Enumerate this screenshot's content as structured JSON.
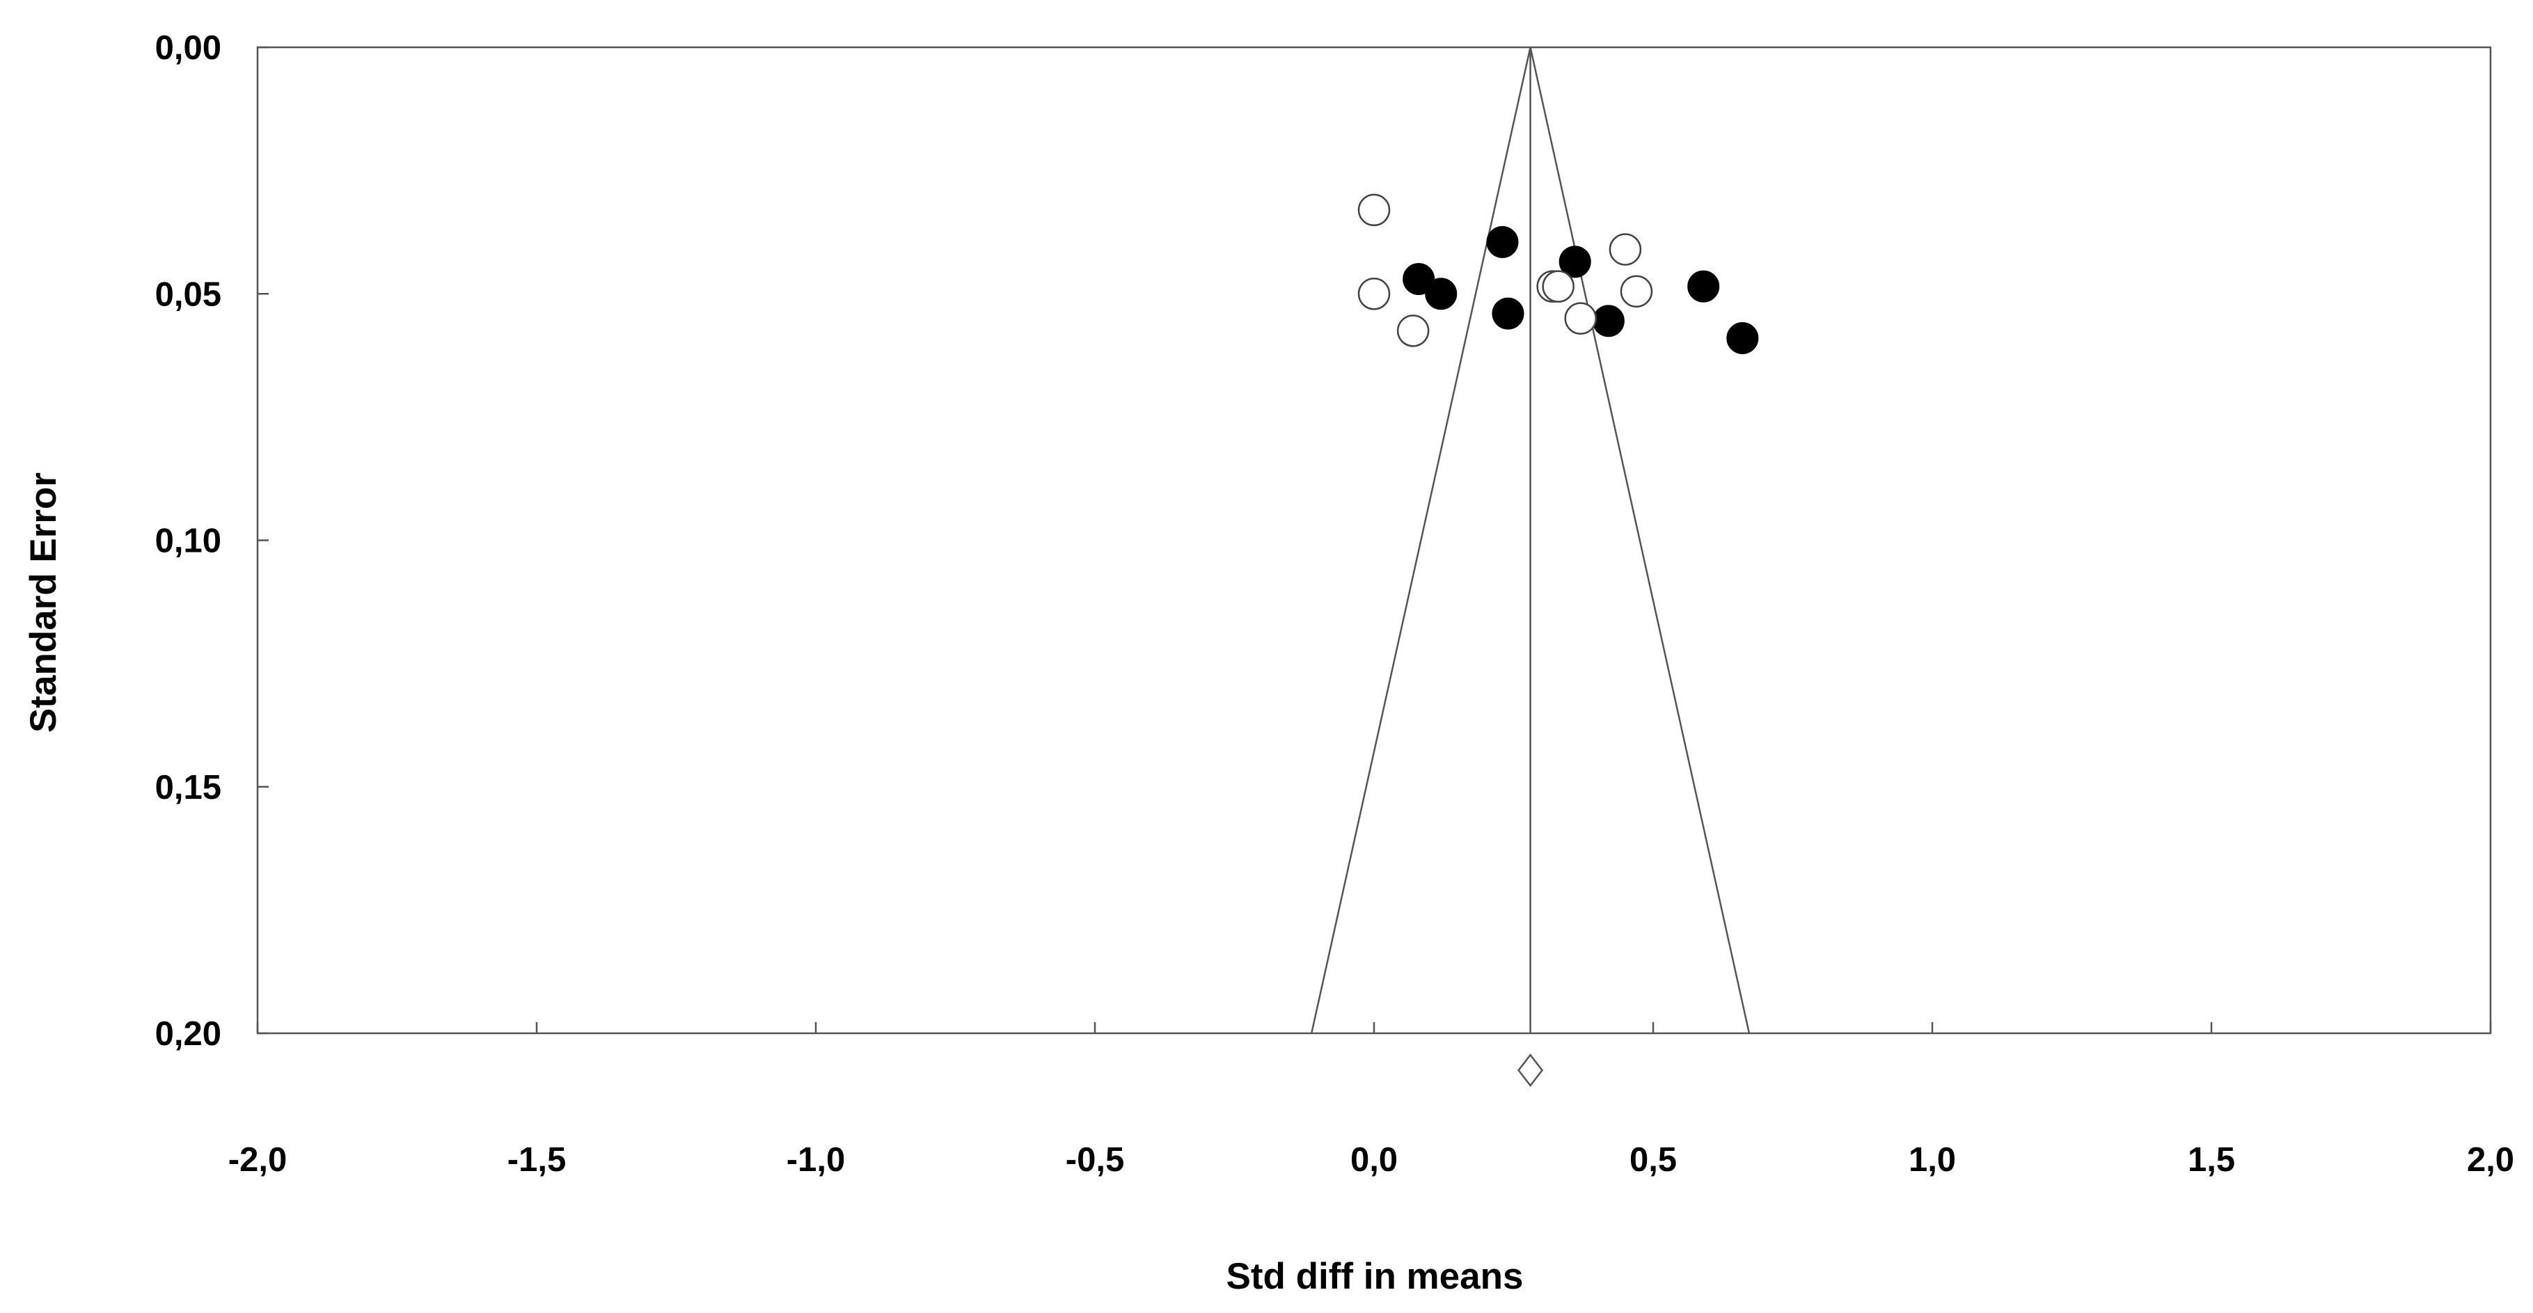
{
  "chart_data": {
    "type": "scatter",
    "title": "",
    "xlabel": "Std diff in means",
    "ylabel": "Standard Error",
    "xlim": [
      -2.0,
      2.0
    ],
    "ylim": [
      0.0,
      0.2
    ],
    "y_inverted": true,
    "grid": false,
    "x_ticks": [
      -2.0,
      -1.5,
      -1.0,
      -0.5,
      0.0,
      0.5,
      1.0,
      1.5,
      2.0
    ],
    "x_tick_labels": [
      "-2,0",
      "-1,5",
      "-1,0",
      "-0,5",
      "0,0",
      "0,5",
      "1,0",
      "1,5",
      "2,0"
    ],
    "y_ticks": [
      0.0,
      0.05,
      0.1,
      0.15,
      0.2
    ],
    "y_tick_labels": [
      "0,00",
      "0,05",
      "0,10",
      "0,15",
      "0,20"
    ],
    "summary_effect": 0.28,
    "funnel": {
      "apex": [
        0.28,
        0.0
      ],
      "base_left": [
        -0.112,
        0.2
      ],
      "base_right": [
        0.672,
        0.2
      ]
    },
    "summary_diamond": {
      "x": 0.28,
      "y": 0.2075
    },
    "series": [
      {
        "style": "filled",
        "color": "#000000",
        "points": [
          {
            "x": 0.23,
            "y": 0.0395
          },
          {
            "x": 0.36,
            "y": 0.0435
          },
          {
            "x": 0.08,
            "y": 0.047
          },
          {
            "x": 0.12,
            "y": 0.05
          },
          {
            "x": 0.24,
            "y": 0.054
          },
          {
            "x": 0.42,
            "y": 0.0555
          },
          {
            "x": 0.59,
            "y": 0.0485
          },
          {
            "x": 0.66,
            "y": 0.059
          }
        ]
      },
      {
        "style": "open",
        "color": "#ffffff",
        "points": [
          {
            "x": 0.0,
            "y": 0.033
          },
          {
            "x": 0.0,
            "y": 0.05
          },
          {
            "x": 0.07,
            "y": 0.0575
          },
          {
            "x": 0.32,
            "y": 0.0485
          },
          {
            "x": 0.33,
            "y": 0.0485
          },
          {
            "x": 0.45,
            "y": 0.041
          },
          {
            "x": 0.47,
            "y": 0.0495
          },
          {
            "x": 0.37,
            "y": 0.055
          }
        ]
      }
    ]
  }
}
